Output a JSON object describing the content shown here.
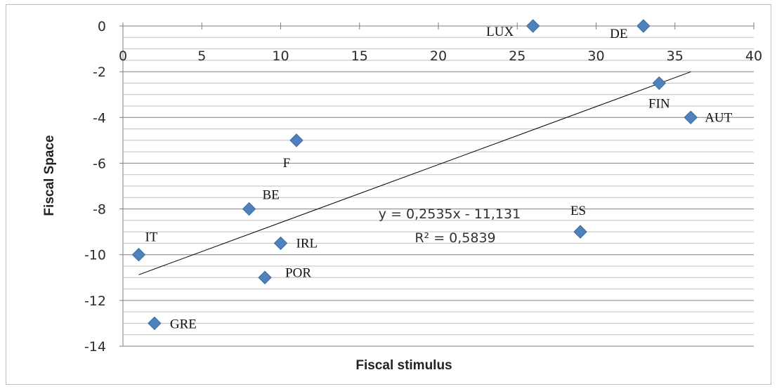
{
  "chart_data": {
    "type": "scatter",
    "xlabel": "Fiscal stimulus",
    "ylabel": "Fiscal Space",
    "xlim": [
      0,
      40
    ],
    "ylim": [
      -14,
      0
    ],
    "x_ticks": [
      "0",
      "5",
      "10",
      "15",
      "20",
      "25",
      "30",
      "35",
      "40"
    ],
    "y_ticks": [
      "0",
      "-2",
      "-4",
      "-6",
      "-8",
      "-10",
      "-12",
      "-14"
    ],
    "minor_gridlines": true,
    "marker_color": "#4f81bd",
    "points": [
      {
        "label": "LUX",
        "x": 26,
        "y": 0
      },
      {
        "label": "DE",
        "x": 33,
        "y": 0
      },
      {
        "label": "FIN",
        "x": 34,
        "y": -2.5
      },
      {
        "label": "AUT",
        "x": 36,
        "y": -4
      },
      {
        "label": "F",
        "x": 11,
        "y": -5
      },
      {
        "label": "BE",
        "x": 8,
        "y": -8
      },
      {
        "label": "ES",
        "x": 29,
        "y": -9
      },
      {
        "label": "IRL",
        "x": 10,
        "y": -9.5
      },
      {
        "label": "IT",
        "x": 1,
        "y": -10
      },
      {
        "label": "POR",
        "x": 9,
        "y": -11
      },
      {
        "label": "GRE",
        "x": 2,
        "y": -13
      }
    ],
    "trendline": {
      "slope": 0.2535,
      "intercept": -11.131,
      "x_range": [
        1,
        36
      ],
      "equation": "y = 0,2535x - 11,131",
      "r_squared": "R² = 0,5839"
    }
  }
}
